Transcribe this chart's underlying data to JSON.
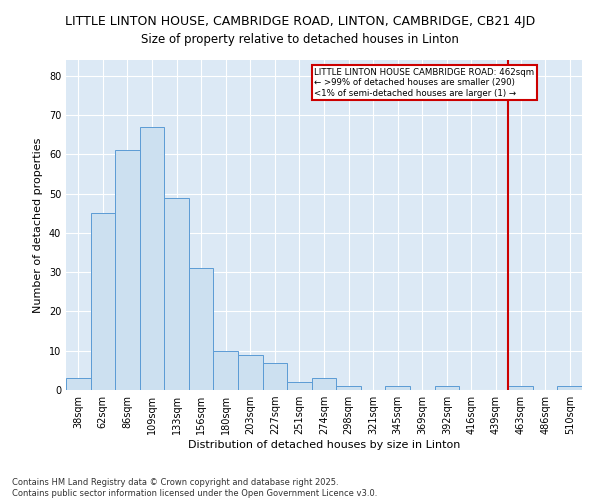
{
  "title": "LITTLE LINTON HOUSE, CAMBRIDGE ROAD, LINTON, CAMBRIDGE, CB21 4JD",
  "subtitle": "Size of property relative to detached houses in Linton",
  "xlabel": "Distribution of detached houses by size in Linton",
  "ylabel": "Number of detached properties",
  "categories": [
    "38sqm",
    "62sqm",
    "86sqm",
    "109sqm",
    "133sqm",
    "156sqm",
    "180sqm",
    "203sqm",
    "227sqm",
    "251sqm",
    "274sqm",
    "298sqm",
    "321sqm",
    "345sqm",
    "369sqm",
    "392sqm",
    "416sqm",
    "439sqm",
    "463sqm",
    "486sqm",
    "510sqm"
  ],
  "values": [
    3,
    45,
    61,
    67,
    49,
    31,
    10,
    9,
    7,
    2,
    3,
    1,
    0,
    1,
    0,
    1,
    0,
    0,
    1,
    0,
    1
  ],
  "bar_color": "#cce0f0",
  "bar_edge_color": "#5b9bd5",
  "vline_color": "#cc0000",
  "vline_label": "LITTLE LINTON HOUSE CAMBRIDGE ROAD: 462sqm",
  "vline_sublabel1": "← >99% of detached houses are smaller (290)",
  "vline_sublabel2": "<1% of semi-detached houses are larger (1) →",
  "annotation_box_color": "#cc0000",
  "ylim": [
    0,
    84
  ],
  "yticks": [
    0,
    10,
    20,
    30,
    40,
    50,
    60,
    70,
    80
  ],
  "footnote1": "Contains HM Land Registry data © Crown copyright and database right 2025.",
  "footnote2": "Contains public sector information licensed under the Open Government Licence v3.0.",
  "bg_color": "#dce9f5",
  "title_fontsize": 9,
  "subtitle_fontsize": 8.5,
  "axis_label_fontsize": 8,
  "tick_fontsize": 7,
  "footnote_fontsize": 6
}
